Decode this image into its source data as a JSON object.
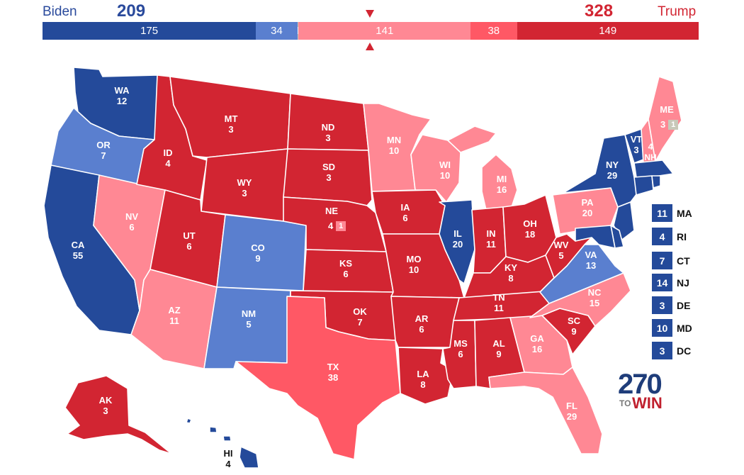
{
  "header": {
    "dem_name": "Biden",
    "dem_total": "209",
    "rep_name": "Trump",
    "rep_total": "328"
  },
  "bar_segments": [
    {
      "label": "175",
      "value": 175,
      "color": "#244a9a"
    },
    {
      "label": "34",
      "value": 34,
      "color": "#5a7fcf"
    },
    {
      "label": "1",
      "value": 1,
      "color": "#c8c8b8"
    },
    {
      "label": "141",
      "value": 141,
      "color": "#ff8894"
    },
    {
      "label": "38",
      "value": 38,
      "color": "#ff5865"
    },
    {
      "label": "149",
      "value": 149,
      "color": "#d22532"
    }
  ],
  "colors": {
    "safe_dem": "#244a9a",
    "likely_dem": "#5a7fcf",
    "tossup": "#c8c8b8",
    "leans_rep": "#ff8894",
    "likely_rep": "#ff5865",
    "safe_rep": "#d22532"
  },
  "states": {
    "WA": {
      "abbr": "WA",
      "ev": "12"
    },
    "OR": {
      "abbr": "OR",
      "ev": "7"
    },
    "CA": {
      "abbr": "CA",
      "ev": "55"
    },
    "NV": {
      "abbr": "NV",
      "ev": "6"
    },
    "ID": {
      "abbr": "ID",
      "ev": "4"
    },
    "MT": {
      "abbr": "MT",
      "ev": "3"
    },
    "WY": {
      "abbr": "WY",
      "ev": "3"
    },
    "UT": {
      "abbr": "UT",
      "ev": "6"
    },
    "CO": {
      "abbr": "CO",
      "ev": "9"
    },
    "AZ": {
      "abbr": "AZ",
      "ev": "11"
    },
    "NM": {
      "abbr": "NM",
      "ev": "5"
    },
    "ND": {
      "abbr": "ND",
      "ev": "3"
    },
    "SD": {
      "abbr": "SD",
      "ev": "3"
    },
    "NE": {
      "abbr": "NE",
      "ev": "4",
      "split": "1"
    },
    "KS": {
      "abbr": "KS",
      "ev": "6"
    },
    "OK": {
      "abbr": "OK",
      "ev": "7"
    },
    "TX": {
      "abbr": "TX",
      "ev": "38"
    },
    "MN": {
      "abbr": "MN",
      "ev": "10"
    },
    "IA": {
      "abbr": "IA",
      "ev": "6"
    },
    "MO": {
      "abbr": "MO",
      "ev": "10"
    },
    "AR": {
      "abbr": "AR",
      "ev": "6"
    },
    "LA": {
      "abbr": "LA",
      "ev": "8"
    },
    "WI": {
      "abbr": "WI",
      "ev": "10"
    },
    "IL": {
      "abbr": "IL",
      "ev": "20"
    },
    "MI": {
      "abbr": "MI",
      "ev": "16"
    },
    "IN": {
      "abbr": "IN",
      "ev": "11"
    },
    "OH": {
      "abbr": "OH",
      "ev": "18"
    },
    "KY": {
      "abbr": "KY",
      "ev": "8"
    },
    "TN": {
      "abbr": "TN",
      "ev": "11"
    },
    "MS": {
      "abbr": "MS",
      "ev": "6"
    },
    "AL": {
      "abbr": "AL",
      "ev": "9"
    },
    "GA": {
      "abbr": "GA",
      "ev": "16"
    },
    "FL": {
      "abbr": "FL",
      "ev": "29"
    },
    "SC": {
      "abbr": "SC",
      "ev": "9"
    },
    "NC": {
      "abbr": "NC",
      "ev": "15"
    },
    "VA": {
      "abbr": "VA",
      "ev": "13"
    },
    "WV": {
      "abbr": "WV",
      "ev": "5"
    },
    "PA": {
      "abbr": "PA",
      "ev": "20"
    },
    "NY": {
      "abbr": "NY",
      "ev": "29"
    },
    "VT": {
      "abbr": "VT",
      "ev": "3"
    },
    "NH": {
      "abbr": "NH",
      "ev": "4"
    },
    "ME": {
      "abbr": "ME",
      "ev": "3",
      "split": "1"
    },
    "AK": {
      "abbr": "AK",
      "ev": "3"
    },
    "HI": {
      "abbr": "HI",
      "ev": "4"
    }
  },
  "small_states": [
    {
      "ev": "11",
      "abbr": "MA"
    },
    {
      "ev": "4",
      "abbr": "RI"
    },
    {
      "ev": "7",
      "abbr": "CT"
    },
    {
      "ev": "14",
      "abbr": "NJ"
    },
    {
      "ev": "3",
      "abbr": "DE"
    },
    {
      "ev": "10",
      "abbr": "MD"
    },
    {
      "ev": "3",
      "abbr": "DC"
    }
  ],
  "logo": {
    "number": "270",
    "to": "TO",
    "win": "WIN"
  }
}
